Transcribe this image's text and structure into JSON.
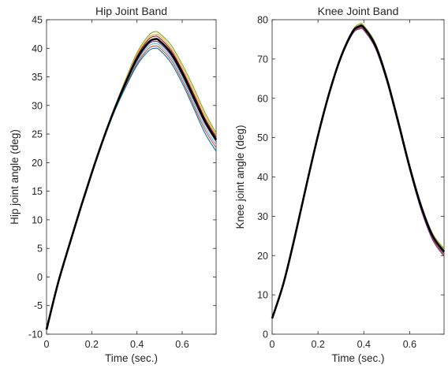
{
  "chart_data": [
    {
      "type": "line",
      "title": "Hip Joint Band",
      "xlabel": "Time (sec.)",
      "ylabel": "Hip joint angle (deg)",
      "xlim": [
        0,
        0.75
      ],
      "ylim": [
        -10,
        45
      ],
      "xticks": [
        0,
        0.2,
        0.4,
        0.6
      ],
      "xtick_labels": [
        "0",
        "0.2",
        "0.4",
        "0.6"
      ],
      "yticks": [
        -10,
        -5,
        0,
        5,
        10,
        15,
        20,
        25,
        30,
        35,
        40,
        45
      ],
      "ytick_labels": [
        "-10",
        "-5",
        "0",
        "5",
        "10",
        "15",
        "20",
        "25",
        "30",
        "35",
        "40",
        "45"
      ],
      "grid": false,
      "legend": "none",
      "x": [
        0,
        0.05,
        0.1,
        0.15,
        0.2,
        0.25,
        0.3,
        0.35,
        0.4,
        0.45,
        0.48,
        0.5,
        0.55,
        0.6,
        0.65,
        0.7,
        0.75
      ],
      "series": [
        {
          "color": "#000000",
          "bold": true,
          "values": [
            -9.2,
            -1.2,
            5.5,
            12.0,
            18.2,
            24.0,
            29.3,
            34.0,
            38.2,
            41.0,
            41.6,
            41.3,
            39.2,
            35.7,
            31.5,
            27.3,
            24.0
          ]
        },
        {
          "color": "#77ac30",
          "values": [
            -9.2,
            -1.2,
            5.5,
            12.0,
            18.2,
            24.0,
            29.5,
            34.6,
            39.2,
            42.2,
            42.9,
            42.6,
            40.6,
            37.2,
            33.2,
            28.8,
            25.2
          ]
        },
        {
          "color": "#edb120",
          "values": [
            -9.2,
            -1.2,
            5.5,
            12.0,
            18.2,
            24.0,
            29.4,
            34.4,
            38.9,
            41.8,
            42.4,
            42.2,
            40.1,
            36.7,
            32.6,
            28.3,
            24.8
          ]
        },
        {
          "color": "#a2142f",
          "values": [
            -9.2,
            -1.2,
            5.5,
            12.0,
            18.2,
            24.0,
            29.4,
            34.2,
            38.6,
            41.5,
            42.1,
            41.8,
            39.7,
            36.2,
            32.1,
            27.8,
            24.5
          ]
        },
        {
          "color": "#7e2f8e",
          "values": [
            -9.2,
            -1.2,
            5.5,
            12.0,
            18.2,
            23.9,
            29.2,
            33.8,
            37.9,
            40.7,
            41.2,
            40.9,
            38.8,
            35.3,
            31.1,
            26.9,
            23.7
          ]
        },
        {
          "color": "#4dbeee",
          "values": [
            -9.2,
            -1.2,
            5.5,
            12.0,
            18.2,
            23.9,
            29.1,
            33.6,
            37.6,
            40.3,
            40.8,
            40.5,
            38.4,
            34.9,
            30.6,
            26.3,
            23.1
          ]
        },
        {
          "color": "#d95319",
          "values": [
            -9.2,
            -1.2,
            5.5,
            12.0,
            18.2,
            23.9,
            29.0,
            33.4,
            37.3,
            39.9,
            40.4,
            40.1,
            38.0,
            34.4,
            30.1,
            25.8,
            22.6
          ]
        },
        {
          "color": "#0072bd",
          "values": [
            -9.2,
            -1.2,
            5.5,
            12.0,
            18.2,
            23.8,
            28.9,
            33.2,
            37.0,
            39.5,
            40.0,
            39.7,
            37.5,
            33.9,
            29.6,
            25.2,
            22.0
          ]
        }
      ]
    },
    {
      "type": "line",
      "title": "Knee Joint Band",
      "xlabel": "Time (sec.)",
      "ylabel": "Knee joint angle (deg)",
      "xlim": [
        0,
        0.75
      ],
      "ylim": [
        0,
        80
      ],
      "xticks": [
        0,
        0.2,
        0.4,
        0.6
      ],
      "xtick_labels": [
        "0",
        "0.2",
        "0.4",
        "0.6"
      ],
      "yticks": [
        0,
        10,
        20,
        30,
        40,
        50,
        60,
        70,
        80
      ],
      "ytick_labels": [
        "0",
        "10",
        "20",
        "30",
        "40",
        "50",
        "60",
        "70",
        "80"
      ],
      "grid": false,
      "legend": "none",
      "x": [
        0,
        0.05,
        0.1,
        0.15,
        0.2,
        0.25,
        0.3,
        0.35,
        0.38,
        0.4,
        0.45,
        0.5,
        0.55,
        0.6,
        0.65,
        0.7,
        0.75
      ],
      "series": [
        {
          "color": "#000000",
          "bold": true,
          "values": [
            4.0,
            13.0,
            25.0,
            38.0,
            50.5,
            61.5,
            70.5,
            76.8,
            78.3,
            78.0,
            73.5,
            65.0,
            54.0,
            42.5,
            32.5,
            25.0,
            21.0
          ]
        },
        {
          "color": "#77ac30",
          "values": [
            4.0,
            13.0,
            25.0,
            38.0,
            50.5,
            61.5,
            70.8,
            77.2,
            78.9,
            78.5,
            74.1,
            65.6,
            54.6,
            43.1,
            33.1,
            25.6,
            21.8
          ]
        },
        {
          "color": "#edb120",
          "values": [
            4.0,
            13.0,
            25.0,
            38.0,
            50.5,
            61.5,
            70.7,
            77.0,
            78.6,
            78.3,
            73.8,
            65.3,
            54.3,
            42.8,
            32.8,
            25.3,
            21.5
          ]
        },
        {
          "color": "#0072bd",
          "values": [
            4.0,
            13.0,
            25.0,
            38.0,
            50.5,
            61.5,
            70.3,
            76.6,
            78.0,
            77.7,
            73.2,
            64.7,
            53.7,
            42.2,
            32.1,
            24.5,
            20.5
          ]
        },
        {
          "color": "#d95319",
          "values": [
            4.0,
            13.0,
            25.0,
            38.0,
            50.5,
            61.5,
            70.2,
            76.4,
            77.8,
            77.5,
            73.0,
            64.5,
            53.5,
            42.0,
            31.9,
            24.3,
            20.2
          ]
        },
        {
          "color": "#7e2f8e",
          "values": [
            4.0,
            13.0,
            25.0,
            38.0,
            50.5,
            61.5,
            70.1,
            76.3,
            77.6,
            77.3,
            72.8,
            64.3,
            53.3,
            41.8,
            31.6,
            24.0,
            19.8
          ]
        }
      ]
    }
  ]
}
